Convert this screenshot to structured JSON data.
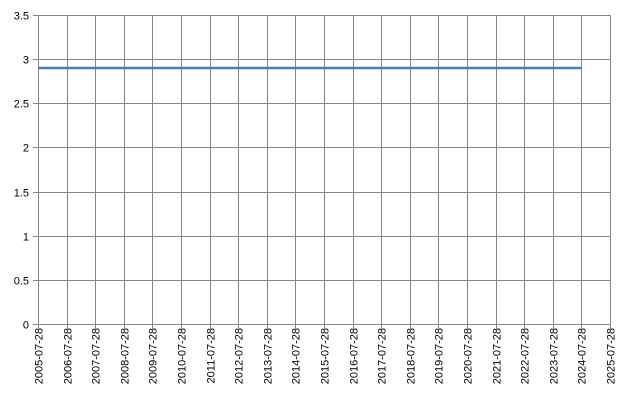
{
  "chart_data": {
    "type": "line",
    "title": "",
    "xlabel": "",
    "ylabel": "",
    "x_ticks": [
      "2005-07-28",
      "2006-07-28",
      "2007-07-28",
      "2008-07-28",
      "2009-07-28",
      "2010-07-28",
      "2011-07-28",
      "2012-07-28",
      "2013-07-28",
      "2014-07-28",
      "2015-07-28",
      "2016-07-28",
      "2017-07-28",
      "2018-07-28",
      "2019-07-28",
      "2020-07-28",
      "2021-07-28",
      "2022-07-28",
      "2023-07-28",
      "2024-07-28",
      "2025-07-28"
    ],
    "y_ticks": [
      "0",
      "0.5",
      "1",
      "1.5",
      "2",
      "2.5",
      "3",
      "3.5"
    ],
    "ylim": [
      0,
      3.5
    ],
    "xlim": [
      "2005-07-28",
      "2025-07-28"
    ],
    "grid": true,
    "legend": "none",
    "series": [
      {
        "color": "#4a7ebb",
        "points": [
          {
            "x": "2005-07-28",
            "y": 2.9
          },
          {
            "x": "2024-07-28",
            "y": 2.9
          }
        ]
      }
    ]
  }
}
